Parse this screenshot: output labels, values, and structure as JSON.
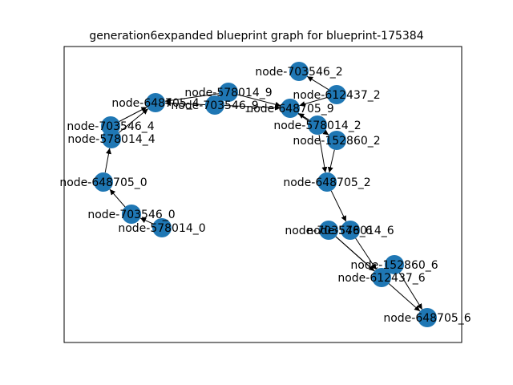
{
  "title": "generation6expanded blueprint graph for blueprint-175384",
  "colors": {
    "node": "#1f77b4",
    "edge": "#000000"
  },
  "nodes": [
    {
      "id": "node-703546_2",
      "label": "node-703546_2"
    },
    {
      "id": "node-612437_2",
      "label": "node-612437_2"
    },
    {
      "id": "node-578014_9",
      "label": "node-578014_9"
    },
    {
      "id": "node-648705_4",
      "label": "node-648705_4"
    },
    {
      "id": "node-703546_9",
      "label": "node-703546_9"
    },
    {
      "id": "node-648705_9",
      "label": "node-648705_9"
    },
    {
      "id": "node-578014_2",
      "label": "node-578014_2"
    },
    {
      "id": "node-152860_2",
      "label": "node-152860_2"
    },
    {
      "id": "node-703546_4",
      "label": "node-703546_4"
    },
    {
      "id": "node-578014_4",
      "label": "node-578014_4"
    },
    {
      "id": "node-648705_0",
      "label": "node-648705_0"
    },
    {
      "id": "node-648705_2",
      "label": "node-648705_2"
    },
    {
      "id": "node-703546_0",
      "label": "node-703546_0"
    },
    {
      "id": "node-578014_0",
      "label": "node-578014_0"
    },
    {
      "id": "node-703546_6",
      "label": "node-703546_6"
    },
    {
      "id": "node-578014_6",
      "label": "node-578014_6"
    },
    {
      "id": "node-152860_6",
      "label": "node-152860_6"
    },
    {
      "id": "node-612437_6",
      "label": "node-612437_6"
    },
    {
      "id": "node-648705_6",
      "label": "node-648705_6"
    }
  ],
  "edges": [
    [
      "node-612437_2",
      "node-703546_2"
    ],
    [
      "node-612437_2",
      "node-648705_9"
    ],
    [
      "node-578014_9",
      "node-648705_9"
    ],
    [
      "node-703546_9",
      "node-648705_9"
    ],
    [
      "node-578014_9",
      "node-648705_4"
    ],
    [
      "node-703546_9",
      "node-648705_4"
    ],
    [
      "node-703546_4",
      "node-648705_4"
    ],
    [
      "node-578014_4",
      "node-648705_4"
    ],
    [
      "node-648705_0",
      "node-578014_4"
    ],
    [
      "node-703546_0",
      "node-648705_0"
    ],
    [
      "node-578014_0",
      "node-703546_0"
    ],
    [
      "node-578014_2",
      "node-648705_9"
    ],
    [
      "node-648705_9",
      "node-152860_2"
    ],
    [
      "node-578014_2",
      "node-648705_2"
    ],
    [
      "node-152860_2",
      "node-648705_2"
    ],
    [
      "node-648705_2",
      "node-578014_6"
    ],
    [
      "node-703546_6",
      "node-612437_6"
    ],
    [
      "node-578014_6",
      "node-612437_6"
    ],
    [
      "node-703546_6",
      "node-648705_6"
    ],
    [
      "node-152860_6",
      "node-648705_6"
    ]
  ]
}
